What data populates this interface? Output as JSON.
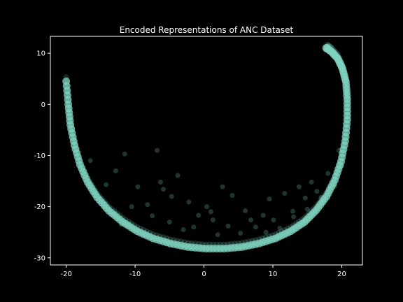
{
  "chart_data": {
    "type": "scatter",
    "title": "Encoded Representations of ANC Dataset",
    "xlabel": "",
    "ylabel": "",
    "xlim": [
      -22.3,
      23.0
    ],
    "ylim": [
      -31.4,
      13.3
    ],
    "xticks": [
      -20,
      -10,
      0,
      10,
      20
    ],
    "yticks": [
      -30,
      -20,
      -10,
      0,
      10
    ],
    "grid": false,
    "colors": {
      "background": "#000000",
      "axes": "#ffffff",
      "point": "#7fd3c0"
    },
    "marker": {
      "shape": "circle",
      "alpha": 0.25
    },
    "series": [
      {
        "shape": "crescent arc",
        "x": [
          -20.0,
          -19.7,
          -19.4,
          -18.8,
          -18.0,
          -16.9,
          -15.5,
          -13.8,
          -11.8,
          -9.7,
          -7.4,
          -4.9,
          -2.3,
          0.3,
          2.9,
          5.5,
          8.0,
          10.4,
          12.6,
          14.6,
          16.3,
          17.8,
          19.0,
          19.9,
          20.5,
          20.8,
          20.8,
          20.6,
          20.1,
          19.4,
          18.5,
          17.8
        ],
        "y": [
          4.5,
          0.0,
          -4.0,
          -8.0,
          -11.8,
          -15.2,
          -18.2,
          -20.8,
          -23.0,
          -24.8,
          -26.2,
          -27.2,
          -27.9,
          -28.2,
          -28.2,
          -27.9,
          -27.2,
          -26.2,
          -24.8,
          -23.0,
          -20.7,
          -18.0,
          -14.8,
          -11.2,
          -7.2,
          -3.0,
          1.0,
          4.4,
          7.0,
          9.0,
          10.3,
          11.0
        ]
      },
      {
        "shape": "scattered outliers",
        "x": [
          -16.5,
          -14.2,
          -12.8,
          -11.5,
          -9.6,
          -8.2,
          -6.8,
          -6.3,
          -5.9,
          -4.7,
          -3.8,
          -2.2,
          -0.8,
          0.4,
          1.3,
          2.7,
          4.1,
          5.3,
          6.8,
          8.6,
          10.1,
          11.7,
          12.9,
          13.8,
          14.7,
          15.6,
          16.4,
          17.2,
          18.0,
          19.6,
          -13.0,
          -12.0,
          -10.5,
          -7.5,
          -5.0,
          -3.0,
          2.0,
          3.5,
          7.5,
          9.0,
          11.0,
          13.0,
          15.0,
          17.0,
          19.0,
          20.0,
          9.5,
          -1.5,
          1.0,
          6.0
        ],
        "y": [
          -11.0,
          -15.7,
          -13.0,
          -9.7,
          -16.1,
          -19.6,
          -9.0,
          -15.2,
          -16.6,
          -18.0,
          -13.9,
          -19.1,
          -21.7,
          -20.0,
          -22.6,
          -16.1,
          -17.8,
          -25.2,
          -22.6,
          -21.7,
          -22.6,
          -17.4,
          -20.9,
          -16.1,
          -18.3,
          -15.2,
          -17.0,
          -19.1,
          -13.5,
          -9.0,
          -21.5,
          -23.5,
          -20.0,
          -21.8,
          -23.0,
          -24.5,
          -25.5,
          -23.8,
          -24.0,
          -25.0,
          -24.2,
          -22.0,
          -20.5,
          -18.2,
          -16.0,
          -12.0,
          -18.5,
          -24.0,
          -21.0,
          -20.8
        ]
      }
    ]
  }
}
